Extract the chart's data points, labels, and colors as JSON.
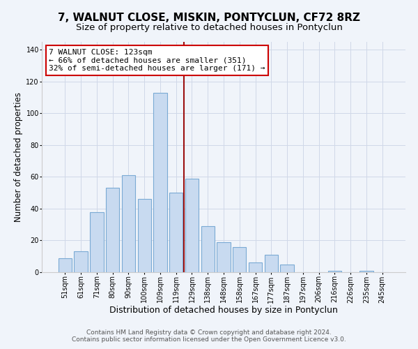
{
  "title": "7, WALNUT CLOSE, MISKIN, PONTYCLUN, CF72 8RZ",
  "subtitle": "Size of property relative to detached houses in Pontyclun",
  "xlabel": "Distribution of detached houses by size in Pontyclun",
  "ylabel": "Number of detached properties",
  "categories": [
    "51sqm",
    "61sqm",
    "71sqm",
    "80sqm",
    "90sqm",
    "100sqm",
    "109sqm",
    "119sqm",
    "129sqm",
    "138sqm",
    "148sqm",
    "158sqm",
    "167sqm",
    "177sqm",
    "187sqm",
    "197sqm",
    "206sqm",
    "216sqm",
    "226sqm",
    "235sqm",
    "245sqm"
  ],
  "values": [
    9,
    13,
    38,
    53,
    61,
    46,
    113,
    50,
    59,
    29,
    19,
    16,
    6,
    11,
    5,
    0,
    0,
    1,
    0,
    1,
    0
  ],
  "bar_color": "#c8daf0",
  "bar_edge_color": "#7aaad4",
  "vline_x_index": 7,
  "vline_color": "#9b1010",
  "annotation_line1": "7 WALNUT CLOSE: 123sqm",
  "annotation_line2": "← 66% of detached houses are smaller (351)",
  "annotation_line3": "32% of semi-detached houses are larger (171) →",
  "annotation_box_color": "#ffffff",
  "annotation_box_edge": "#cc0000",
  "ylim": [
    0,
    145
  ],
  "yticks": [
    0,
    20,
    40,
    60,
    80,
    100,
    120,
    140
  ],
  "footer1": "Contains HM Land Registry data © Crown copyright and database right 2024.",
  "footer2": "Contains public sector information licensed under the Open Government Licence v3.0.",
  "title_fontsize": 11,
  "subtitle_fontsize": 9.5,
  "xlabel_fontsize": 9,
  "ylabel_fontsize": 8.5,
  "tick_fontsize": 7,
  "annot_fontsize": 8,
  "footer_fontsize": 6.5,
  "background_color": "#f0f4fa"
}
